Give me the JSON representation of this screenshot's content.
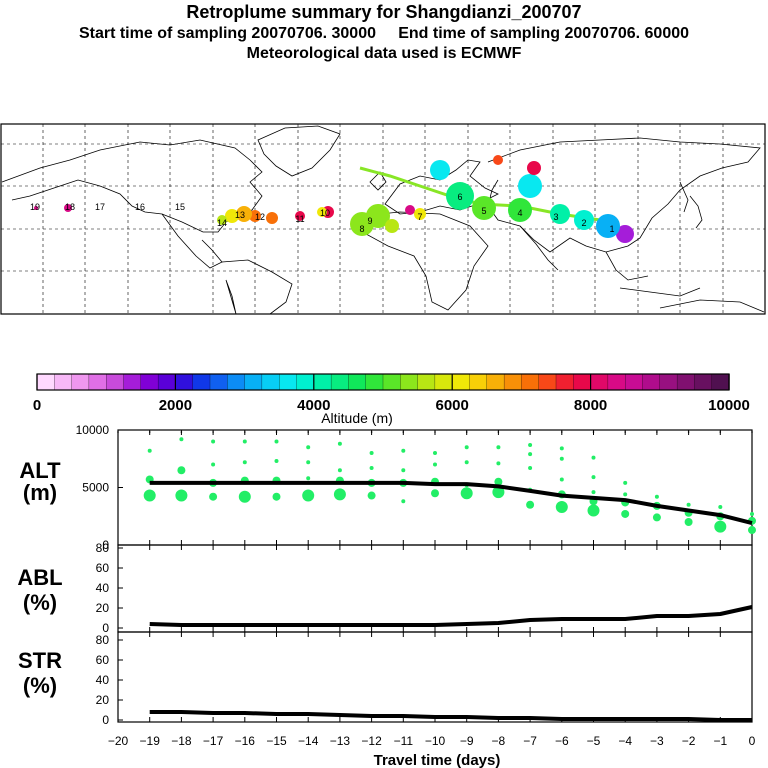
{
  "header": {
    "title": "Retroplume summary for Shangdianzi_200707",
    "sampling_line": "Start time of sampling 20070706. 30000     End time of sampling 20070706. 60000",
    "met_line": "Meteorological data used is ECMWF"
  },
  "colorbar": {
    "label": "Altitude (m)",
    "ticks": [
      "0",
      "2000",
      "4000",
      "6000",
      "8000",
      "10000"
    ],
    "colors": [
      "#ffd9ff",
      "#f7b8f7",
      "#ef97ef",
      "#e06fe6",
      "#c84bdb",
      "#a51dd9",
      "#8000d6",
      "#5a00d8",
      "#3010dd",
      "#1038e8",
      "#1060f0",
      "#0c8cf5",
      "#08b0f5",
      "#08cef5",
      "#08e8f0",
      "#00f0d0",
      "#00f0a8",
      "#08ec80",
      "#10e85a",
      "#30e63a",
      "#5ae628",
      "#8ce61c",
      "#b8e614",
      "#d8e80c",
      "#f0e808",
      "#f8d008",
      "#f8b008",
      "#f89008",
      "#f87008",
      "#f84818",
      "#f02030",
      "#e8084a",
      "#e00868",
      "#d80a86",
      "#c80c94",
      "#b00c8c",
      "#981080",
      "#801070",
      "#681060",
      "#501050"
    ]
  },
  "map": {
    "plume_labels": [
      "19",
      "18",
      "17",
      "16",
      "15",
      "14",
      "13",
      "12",
      "11",
      "10",
      "9",
      "8",
      "7",
      "6",
      "5",
      "4",
      "3",
      "2",
      "1"
    ]
  },
  "panels": {
    "alt": {
      "label_top": "ALT",
      "label_bottom": "(m)",
      "ylim": [
        0,
        10000
      ],
      "ticks": [
        "0",
        "5000",
        "10000"
      ]
    },
    "abl": {
      "label_top": "ABL",
      "label_bottom": "(%)",
      "ylim": [
        0,
        90
      ],
      "ticks": [
        "0",
        "20",
        "40",
        "60",
        "80"
      ]
    },
    "str": {
      "label_top": "STR",
      "label_bottom": "(%)",
      "ylim": [
        0,
        90
      ],
      "ticks": [
        "0",
        "20",
        "40",
        "60",
        "80"
      ]
    }
  },
  "xaxis": {
    "label": "Travel time (days)",
    "ticks": [
      "−20",
      "−19",
      "−18",
      "−17",
      "−16",
      "−15",
      "−14",
      "−13",
      "−12",
      "−11",
      "−10",
      "−9",
      "−8",
      "−7",
      "−6",
      "−5",
      "−4",
      "−3",
      "−2",
      "−1",
      "0"
    ],
    "range": [
      -20,
      0
    ]
  },
  "chart_data": [
    {
      "type": "line",
      "title": "ALT",
      "xlabel": "Travel time (days)",
      "ylabel": "ALT (m)",
      "xlim": [
        -20,
        0
      ],
      "ylim": [
        0,
        10000
      ],
      "series": [
        {
          "name": "mean altitude",
          "x": [
            -19,
            -18,
            -17,
            -16,
            -15,
            -14,
            -13,
            -12,
            -11,
            -10,
            -9,
            -8,
            -7,
            -6,
            -5,
            -4,
            -3,
            -2,
            -1,
            0
          ],
          "values": [
            5400,
            5400,
            5400,
            5400,
            5400,
            5400,
            5400,
            5400,
            5400,
            5300,
            5300,
            5100,
            4700,
            4300,
            4100,
            3900,
            3400,
            3000,
            2600,
            1900
          ]
        },
        {
          "name": "cluster altitudes",
          "points": [
            [
              -19,
              4300,
              3
            ],
            [
              -19,
              5700,
              2
            ],
            [
              -19,
              8200,
              1
            ],
            [
              -18,
              4300,
              3
            ],
            [
              -18,
              6500,
              2
            ],
            [
              -18,
              9200,
              1
            ],
            [
              -17,
              4200,
              2
            ],
            [
              -17,
              5400,
              2
            ],
            [
              -17,
              7000,
              1
            ],
            [
              -17,
              9000,
              1
            ],
            [
              -16,
              4200,
              3
            ],
            [
              -16,
              5600,
              2
            ],
            [
              -16,
              7200,
              1
            ],
            [
              -16,
              9000,
              1
            ],
            [
              -15,
              4200,
              2
            ],
            [
              -15,
              5600,
              2
            ],
            [
              -15,
              7300,
              1
            ],
            [
              -15,
              9000,
              1
            ],
            [
              -14,
              4300,
              3
            ],
            [
              -14,
              5800,
              1
            ],
            [
              -14,
              7200,
              1
            ],
            [
              -14,
              8500,
              1
            ],
            [
              -13,
              4400,
              3
            ],
            [
              -13,
              5600,
              2
            ],
            [
              -13,
              6500,
              1
            ],
            [
              -13,
              8800,
              1
            ],
            [
              -12,
              4300,
              2
            ],
            [
              -12,
              5400,
              2
            ],
            [
              -12,
              6700,
              1
            ],
            [
              -12,
              8000,
              1
            ],
            [
              -11,
              3800,
              1
            ],
            [
              -11,
              5400,
              2
            ],
            [
              -11,
              6500,
              1
            ],
            [
              -11,
              8200,
              1
            ],
            [
              -10,
              4500,
              2
            ],
            [
              -10,
              5500,
              2
            ],
            [
              -10,
              7000,
              1
            ],
            [
              -10,
              8000,
              1
            ],
            [
              -9,
              4500,
              3
            ],
            [
              -9,
              5200,
              1
            ],
            [
              -9,
              7200,
              1
            ],
            [
              -9,
              8500,
              1
            ],
            [
              -8,
              4600,
              3
            ],
            [
              -8,
              5500,
              2
            ],
            [
              -8,
              7100,
              1
            ],
            [
              -8,
              8500,
              1
            ],
            [
              -7,
              3500,
              2
            ],
            [
              -7,
              4800,
              1
            ],
            [
              -7,
              6700,
              1
            ],
            [
              -7,
              7900,
              1
            ],
            [
              -7,
              8700,
              1
            ],
            [
              -6,
              3300,
              3
            ],
            [
              -6,
              4400,
              2
            ],
            [
              -6,
              5700,
              1
            ],
            [
              -6,
              7500,
              1
            ],
            [
              -6,
              8400,
              1
            ],
            [
              -5,
              3000,
              3
            ],
            [
              -5,
              3800,
              2
            ],
            [
              -5,
              4600,
              1
            ],
            [
              -5,
              5900,
              1
            ],
            [
              -5,
              7600,
              1
            ],
            [
              -4,
              2700,
              2
            ],
            [
              -4,
              3700,
              2
            ],
            [
              -4,
              4400,
              1
            ],
            [
              -4,
              5400,
              1
            ],
            [
              -3,
              2400,
              2
            ],
            [
              -3,
              3400,
              2
            ],
            [
              -3,
              4200,
              1
            ],
            [
              -2,
              2000,
              2
            ],
            [
              -2,
              2800,
              2
            ],
            [
              -2,
              3500,
              1
            ],
            [
              -1,
              1600,
              3
            ],
            [
              -1,
              2500,
              2
            ],
            [
              -1,
              3300,
              1
            ],
            [
              0,
              1300,
              2
            ],
            [
              0,
              2100,
              2
            ],
            [
              0,
              2700,
              1
            ]
          ]
        }
      ]
    },
    {
      "type": "line",
      "title": "ABL",
      "xlabel": "Travel time (days)",
      "ylabel": "ABL (%)",
      "xlim": [
        -20,
        0
      ],
      "ylim": [
        0,
        90
      ],
      "series": [
        {
          "name": "ABL",
          "x": [
            -19,
            -18,
            -17,
            -16,
            -15,
            -14,
            -13,
            -12,
            -11,
            -10,
            -9,
            -8,
            -7,
            -6,
            -5,
            -4,
            -3,
            -2,
            -1,
            0
          ],
          "values": [
            4,
            3,
            3,
            3,
            3,
            3,
            3,
            3,
            3,
            3,
            4,
            5,
            8,
            9,
            9,
            9,
            12,
            12,
            14,
            21
          ]
        }
      ]
    },
    {
      "type": "line",
      "title": "STR",
      "xlabel": "Travel time (days)",
      "ylabel": "STR (%)",
      "xlim": [
        -20,
        0
      ],
      "ylim": [
        0,
        90
      ],
      "series": [
        {
          "name": "STR",
          "x": [
            -19,
            -18,
            -17,
            -16,
            -15,
            -14,
            -13,
            -12,
            -11,
            -10,
            -9,
            -8,
            -7,
            -6,
            -5,
            -4,
            -3,
            -2,
            -1,
            0
          ],
          "values": [
            8,
            8,
            7,
            7,
            6,
            6,
            5,
            4,
            4,
            3,
            3,
            2,
            2,
            1,
            1,
            1,
            1,
            1,
            0,
            0
          ]
        }
      ]
    }
  ]
}
